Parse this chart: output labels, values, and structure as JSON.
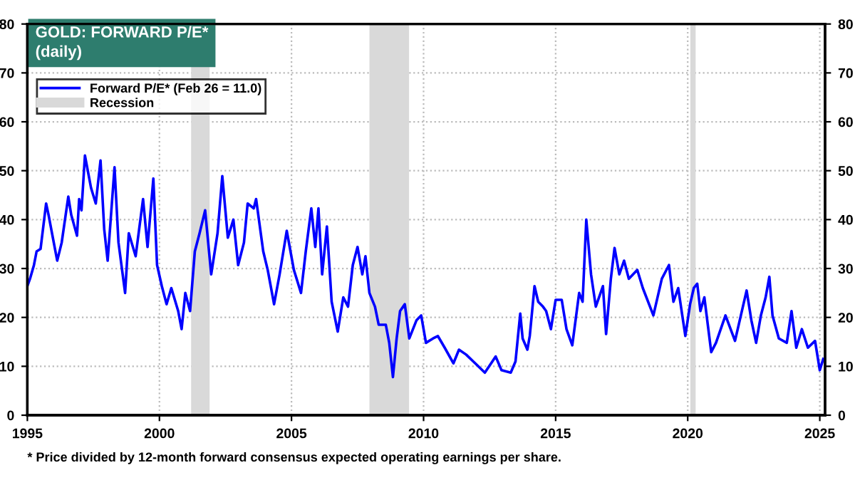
{
  "chart_data": {
    "type": "line",
    "title": "GOLD: FORWARD P/E*",
    "subtitle": "(daily)",
    "annotations": [
      "* Price divided by 12-month forward consensus expected operating earnings per share."
    ],
    "x": [
      1995.0,
      1995.1,
      1995.25,
      1995.35,
      1995.5,
      1995.71,
      1995.8,
      1996.0,
      1996.13,
      1996.3,
      1996.55,
      1996.66,
      1996.88,
      1996.96,
      1997.05,
      1997.18,
      1997.41,
      1997.59,
      1997.77,
      1997.91,
      1998.04,
      1998.3,
      1998.45,
      1998.7,
      1998.84,
      1999.1,
      1999.38,
      1999.55,
      1999.77,
      1999.91,
      2000.09,
      2000.27,
      2000.45,
      2000.71,
      2000.84,
      2000.98,
      2001.16,
      2001.34,
      2001.52,
      2001.73,
      2001.96,
      2002.2,
      2002.38,
      2002.59,
      2002.8,
      2002.98,
      2003.2,
      2003.34,
      2003.57,
      2003.66,
      2003.93,
      2004.1,
      2004.34,
      2004.55,
      2004.82,
      2005.09,
      2005.36,
      2005.54,
      2005.75,
      2005.9,
      2006.02,
      2006.16,
      2006.34,
      2006.52,
      2006.75,
      2006.96,
      2007.14,
      2007.32,
      2007.5,
      2007.68,
      2007.8,
      2007.95,
      2008.16,
      2008.3,
      2008.57,
      2008.7,
      2008.84,
      2008.98,
      2009.11,
      2009.29,
      2009.46,
      2009.73,
      2009.91,
      2010.09,
      2010.36,
      2010.54,
      2010.8,
      2011.13,
      2011.34,
      2011.61,
      2011.88,
      2012.32,
      2012.73,
      2012.95,
      2013.3,
      2013.48,
      2013.66,
      2013.75,
      2013.93,
      2014.02,
      2014.2,
      2014.34,
      2014.52,
      2014.64,
      2014.82,
      2015.0,
      2015.23,
      2015.41,
      2015.63,
      2015.89,
      2016.02,
      2016.16,
      2016.34,
      2016.52,
      2016.79,
      2016.91,
      2017.09,
      2017.23,
      2017.41,
      2017.59,
      2017.77,
      2018.09,
      2018.3,
      2018.7,
      2019.02,
      2019.29,
      2019.46,
      2019.64,
      2019.91,
      2020.09,
      2020.23,
      2020.36,
      2020.48,
      2020.63,
      2020.89,
      2021.07,
      2021.43,
      2021.79,
      2022.23,
      2022.41,
      2022.59,
      2022.77,
      2022.95,
      2023.09,
      2023.21,
      2023.45,
      2023.75,
      2023.93,
      2024.11,
      2024.32,
      2024.55,
      2024.82,
      2025.0,
      2025.13
    ],
    "series": [
      {
        "name": "Forward P/E* (Feb 26 = 11.0)",
        "color": "#0000ff",
        "values": [
          26.4,
          27.9,
          30.7,
          33.5,
          34,
          43.3,
          41,
          35.3,
          31.6,
          35.3,
          44.7,
          41,
          36.7,
          44.2,
          41.9,
          53.1,
          46.5,
          43.3,
          52.1,
          38,
          31.6,
          50.7,
          35.3,
          25,
          37.2,
          32.5,
          44.2,
          34.4,
          48.4,
          30.7,
          26.4,
          22.7,
          26,
          21.3,
          17.6,
          25,
          21.3,
          33.5,
          37.2,
          41.9,
          28.8,
          37.2,
          48.9,
          36.3,
          40,
          30.7,
          35.3,
          43.3,
          42.3,
          44.2,
          33.5,
          29.7,
          22.7,
          28.8,
          37.7,
          29.7,
          25,
          33.5,
          42.3,
          34.4,
          42.3,
          28.8,
          38.6,
          23.2,
          17.1,
          24.1,
          22.2,
          30.7,
          34.4,
          28.8,
          32.5,
          25,
          22.2,
          18.5,
          18.5,
          14.8,
          7.8,
          15.7,
          21.3,
          22.7,
          15.7,
          19.4,
          20.4,
          14.8,
          15.7,
          16.2,
          13.8,
          10.6,
          13.4,
          12.4,
          11,
          8.7,
          12,
          9.2,
          8.7,
          11,
          20.8,
          15.7,
          13.4,
          16.2,
          26.4,
          23.2,
          22.2,
          21.3,
          17.6,
          23.6,
          23.6,
          17.6,
          14.3,
          25,
          23.2,
          40,
          28.8,
          22.2,
          26.4,
          16.6,
          27.9,
          34.2,
          28.8,
          31.6,
          27.9,
          29.7,
          26,
          20.4,
          27.9,
          30.7,
          23.2,
          26,
          16.2,
          22.7,
          26,
          26.9,
          21.3,
          24.1,
          12.9,
          14.8,
          20.4,
          15.2,
          25.5,
          19.4,
          14.8,
          20.4,
          24.1,
          28.3,
          20.4,
          15.7,
          14.8,
          21.3,
          13.8,
          17.6,
          13.8,
          15.2,
          9.2,
          11.5
        ]
      }
    ],
    "bands": [
      {
        "axis": "x",
        "from": 2001.2,
        "to": 2001.9,
        "label": "Recession",
        "color": "#d9d9d9"
      },
      {
        "axis": "x",
        "from": 2007.95,
        "to": 2009.45,
        "color": "#d9d9d9"
      },
      {
        "axis": "x",
        "from": 2020.1,
        "to": 2020.3,
        "color": "#d9d9d9"
      }
    ],
    "xlim": [
      1995,
      2025.2
    ],
    "xticks": [
      1995,
      2000,
      2005,
      2010,
      2015,
      2020,
      2025
    ],
    "ylim": [
      0,
      80
    ],
    "yticks": [
      0,
      10,
      20,
      30,
      40,
      50,
      60,
      70,
      80
    ],
    "y2lim": [
      0,
      80
    ],
    "y2ticks": [
      0,
      10,
      20,
      30,
      40,
      50,
      60,
      70,
      80
    ],
    "grid": true,
    "legend": "top left",
    "marker": "none",
    "line_style": "solid"
  }
}
